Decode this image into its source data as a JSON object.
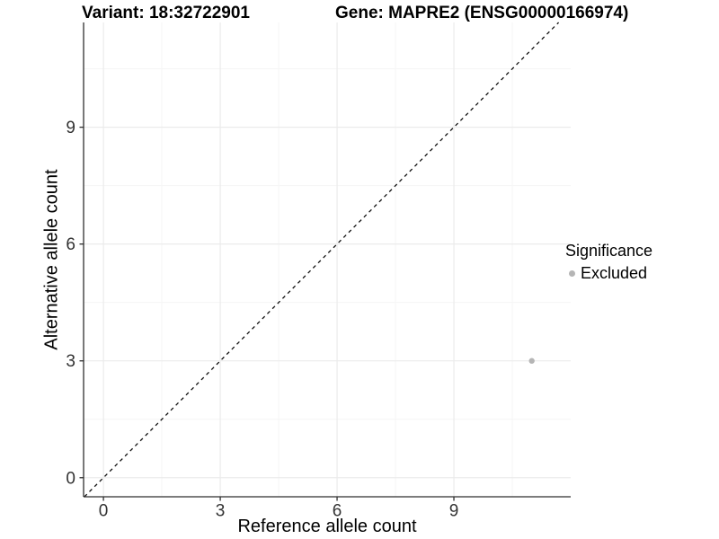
{
  "chart_data": {
    "type": "scatter",
    "title_left": "Variant: 18:32722901",
    "title_right": "Gene: MAPRE2 (ENSG00000166974)",
    "xlabel": "Reference allele count",
    "ylabel": "Alternative allele count",
    "xlim": [
      -0.51,
      12.0
    ],
    "ylim": [
      -0.49,
      11.69
    ],
    "xticks": [
      0,
      3,
      6,
      9
    ],
    "yticks": [
      0,
      3,
      6,
      9
    ],
    "minor_xticks": [
      1.5,
      4.5,
      7.5,
      10.5
    ],
    "minor_yticks": [
      1.5,
      4.5,
      7.5,
      10.5
    ],
    "grid": "major+minor",
    "series": [
      {
        "name": "Excluded",
        "color": "#b5b5b5",
        "point_radius": 3.2,
        "points": [
          {
            "x": 11,
            "y": 3
          }
        ]
      }
    ],
    "reference_line": {
      "type": "identity",
      "equation": "y = x",
      "style": "dashed",
      "color": "#111111"
    },
    "legend": {
      "position": "right",
      "title": "Significance",
      "items": [
        {
          "label": "Excluded",
          "color": "#b5b5b5"
        }
      ]
    },
    "colors": {
      "background": "#ffffff",
      "panel_background": "#ffffff",
      "grid_major": "#ebebeb",
      "grid_minor": "#f5f5f5",
      "axis_line": "#2f2f2f",
      "tick_text": "#333333",
      "title_text": "#000000"
    }
  }
}
